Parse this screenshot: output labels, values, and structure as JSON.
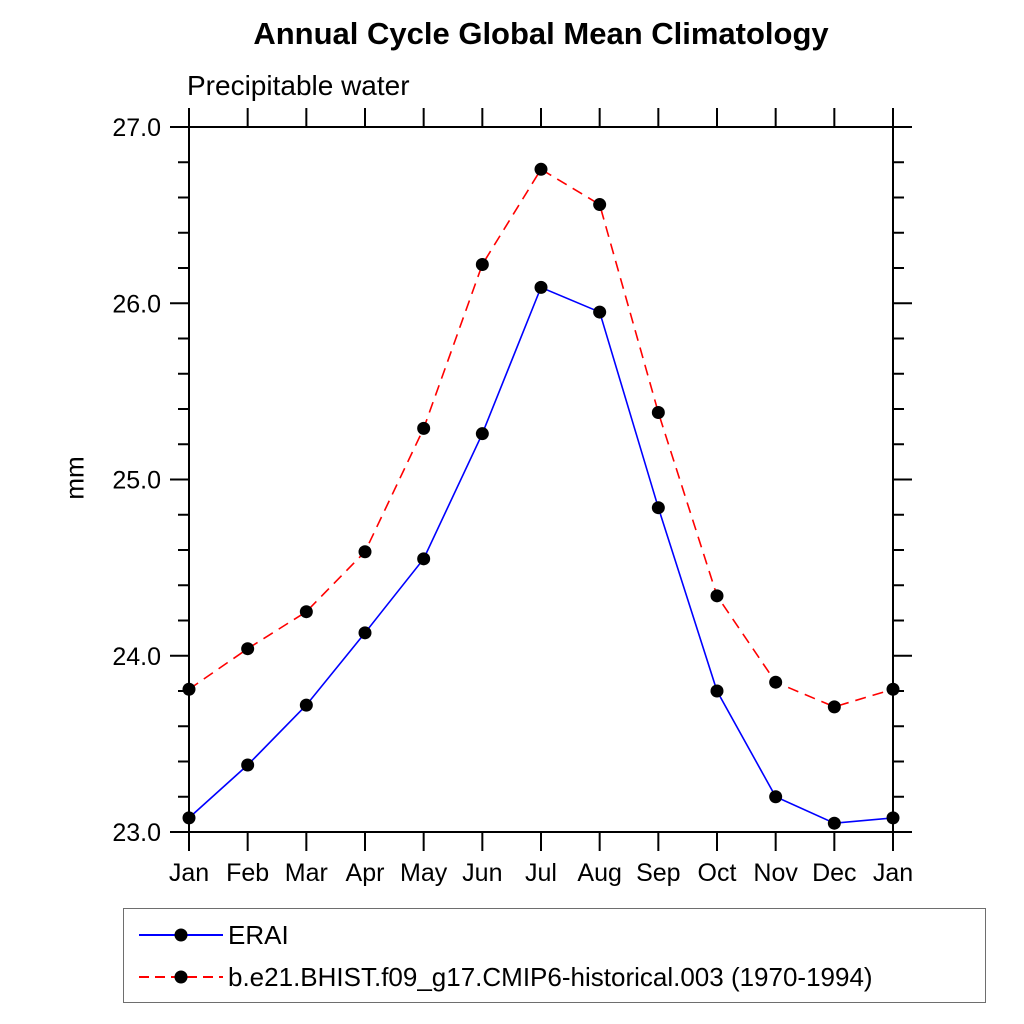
{
  "chart_data": {
    "type": "line",
    "title": "Annual Cycle Global Mean Climatology",
    "subtitle": "Precipitable water",
    "ylabel": "mm",
    "xlabel": "",
    "ylim": [
      23.0,
      27.0
    ],
    "y_tick_labels": [
      "23.0",
      "24.0",
      "25.0",
      "26.0",
      "27.0"
    ],
    "y_major_step": 1.0,
    "y_minor_step": 0.2,
    "categories": [
      "Jan",
      "Feb",
      "Mar",
      "Apr",
      "May",
      "Jun",
      "Jul",
      "Aug",
      "Sep",
      "Oct",
      "Nov",
      "Dec",
      "Jan"
    ],
    "grid": false,
    "legend_position": "bottom-left-box",
    "axis_color": "#000000",
    "series": [
      {
        "name": "ERAI",
        "color": "#0000ff",
        "style": "solid",
        "marker": "filled-circle",
        "marker_color": "#000000",
        "values": [
          23.08,
          23.38,
          23.72,
          24.13,
          24.55,
          25.26,
          26.09,
          25.95,
          24.84,
          23.8,
          23.2,
          23.05,
          23.08
        ]
      },
      {
        "name": "b.e21.BHIST.f09_g17.CMIP6-historical.003 (1970-1994)",
        "color": "#ff0000",
        "style": "dashed",
        "marker": "filled-circle",
        "marker_color": "#000000",
        "values": [
          23.81,
          24.04,
          24.25,
          24.59,
          25.29,
          26.22,
          26.76,
          26.56,
          25.38,
          24.34,
          23.85,
          23.71,
          23.81
        ]
      }
    ]
  }
}
